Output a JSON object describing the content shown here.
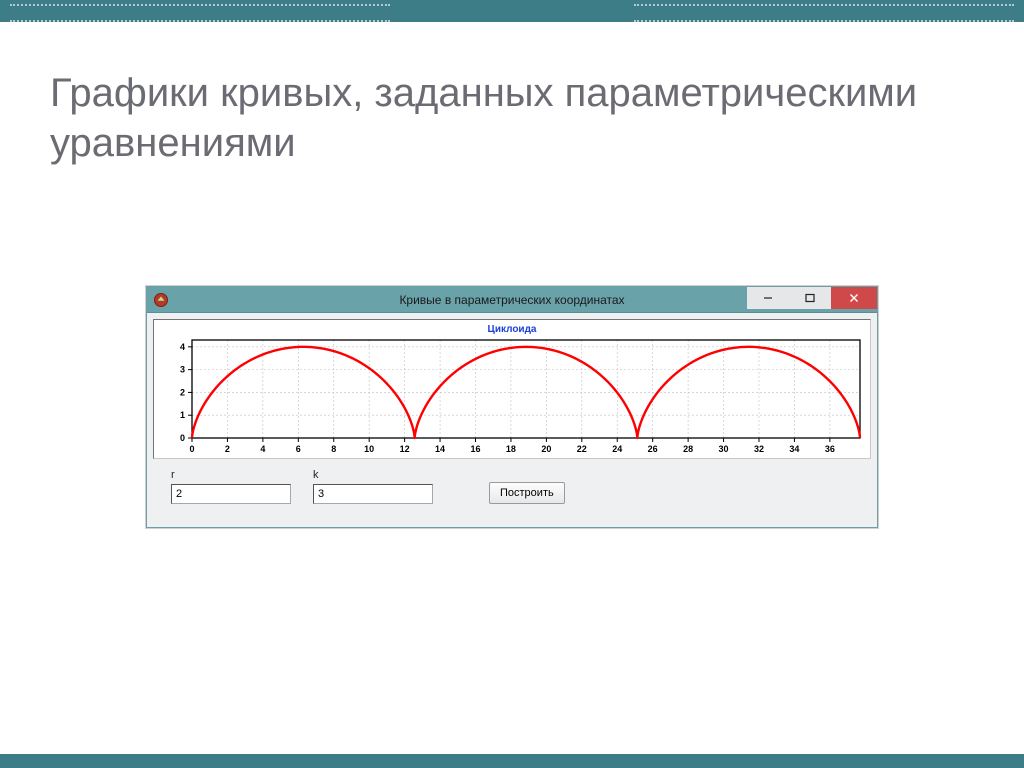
{
  "slide": {
    "title": "Графики кривых, заданных параметрическими уравнениями",
    "accent_color": "#3d7d87"
  },
  "window": {
    "title": "Кривые в параметрических координатах",
    "titlebar_color": "#69a2a9",
    "close_color": "#d0494a",
    "body_background": "#eef0f1",
    "icon_name": "delphi-icon"
  },
  "chart": {
    "type": "line",
    "title": "Циклоида",
    "title_color": "#1a3fd6",
    "title_fontsize": 10,
    "curve_color": "#ff0000",
    "curve_width": 2.4,
    "grid_color": "#c0c0c0",
    "border_color": "#000000",
    "axis_label_color": "#000000",
    "axis_label_fontsize": 9,
    "background_color": "#ffffff",
    "xlim": [
      0,
      37.7
    ],
    "ylim": [
      0,
      4.3
    ],
    "xtick_step": 2,
    "ytick_step": 1,
    "xticks": [
      0,
      2,
      4,
      6,
      8,
      10,
      12,
      14,
      16,
      18,
      20,
      22,
      24,
      26,
      28,
      30,
      32,
      34,
      36
    ],
    "yticks": [
      0,
      1,
      2,
      3,
      4
    ],
    "parametric": {
      "r": 2,
      "k": 3,
      "x_of_t": "r*(t - sin t)",
      "y_of_t": "r*(1 - cos t)",
      "t_range": [
        0,
        18.849556
      ]
    }
  },
  "controls": {
    "r": {
      "label": "r",
      "value": "2"
    },
    "k": {
      "label": "k",
      "value": "3"
    },
    "build_label": "Построить"
  }
}
